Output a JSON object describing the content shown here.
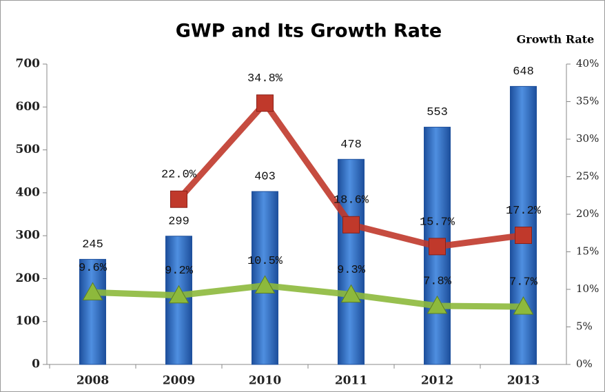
{
  "chart_data": {
    "type": "bar-line",
    "title": "GWP and Its Growth Rate",
    "y2_label": "Growth Rate",
    "categories": [
      "2008",
      "2009",
      "2010",
      "2011",
      "2012",
      "2013"
    ],
    "series": [
      {
        "type": "bar",
        "color": "#2f6fc4",
        "values": [
          245,
          299,
          403,
          478,
          553,
          648
        ]
      },
      {
        "type": "line",
        "axis": "y2",
        "color": "#c0392b",
        "marker": "square",
        "values": [
          null,
          22.0,
          34.8,
          18.6,
          15.7,
          17.2
        ],
        "value_labels": [
          null,
          "22.0%",
          "34.8%",
          "18.6%",
          "15.7%",
          "17.2%"
        ]
      },
      {
        "type": "line",
        "axis": "y2",
        "color": "#8db93c",
        "marker": "triangle",
        "values": [
          9.6,
          9.2,
          10.5,
          9.3,
          7.8,
          7.7
        ],
        "value_labels": [
          "9.6%",
          "9.2%",
          "10.5%",
          "9.3%",
          "7.8%",
          "7.7%"
        ]
      }
    ],
    "ylim": [
      0,
      700
    ],
    "yticks": [
      0,
      100,
      200,
      300,
      400,
      500,
      600,
      700
    ],
    "y2lim": [
      0,
      40
    ],
    "y2ticks": [
      {
        "value": 0,
        "label": "0%"
      },
      {
        "value": 5,
        "label": "5%"
      },
      {
        "value": 10,
        "label": "10%"
      },
      {
        "value": 15,
        "label": "15%"
      },
      {
        "value": 20,
        "label": "20%"
      },
      {
        "value": 25,
        "label": "25%"
      },
      {
        "value": 30,
        "label": "30%"
      },
      {
        "value": 35,
        "label": "35%"
      },
      {
        "value": 40,
        "label": "40%"
      }
    ],
    "grid": false
  }
}
